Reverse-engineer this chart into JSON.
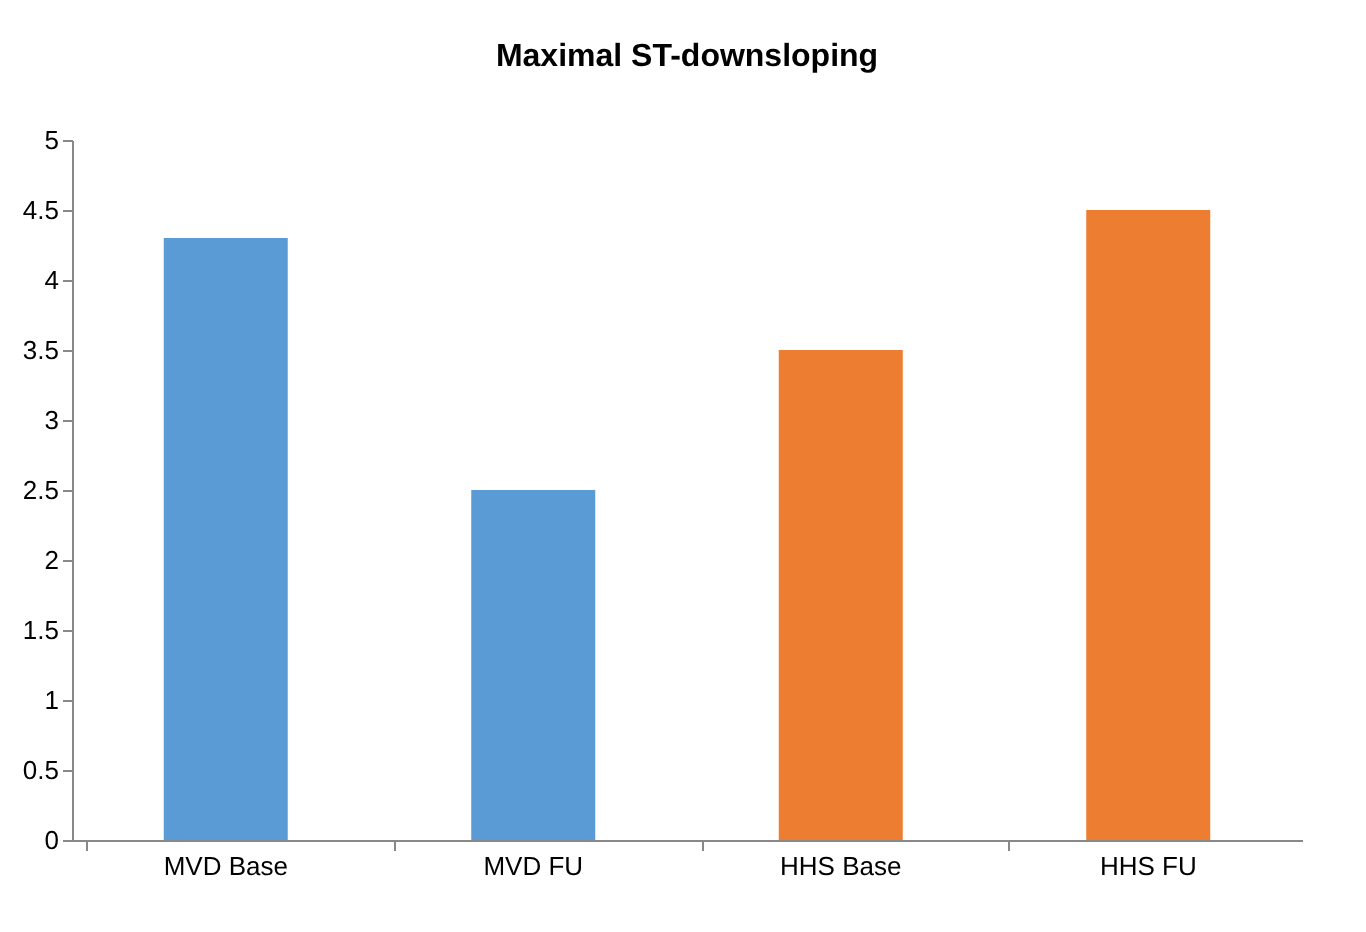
{
  "chart_data": {
    "type": "bar",
    "title": "Maximal ST-downsloping",
    "categories": [
      "MVD Base",
      "MVD FU",
      "HHS Base",
      "HHS FU"
    ],
    "values": [
      4.3,
      2.5,
      3.5,
      4.5
    ],
    "colors": [
      "#5b9bd5",
      "#5b9bd5",
      "#ed7d31",
      "#ed7d31"
    ],
    "ylim": [
      0,
      5
    ],
    "yticks": [
      0,
      0.5,
      1,
      1.5,
      2,
      2.5,
      3,
      3.5,
      4,
      4.5,
      5
    ],
    "grid": false
  }
}
